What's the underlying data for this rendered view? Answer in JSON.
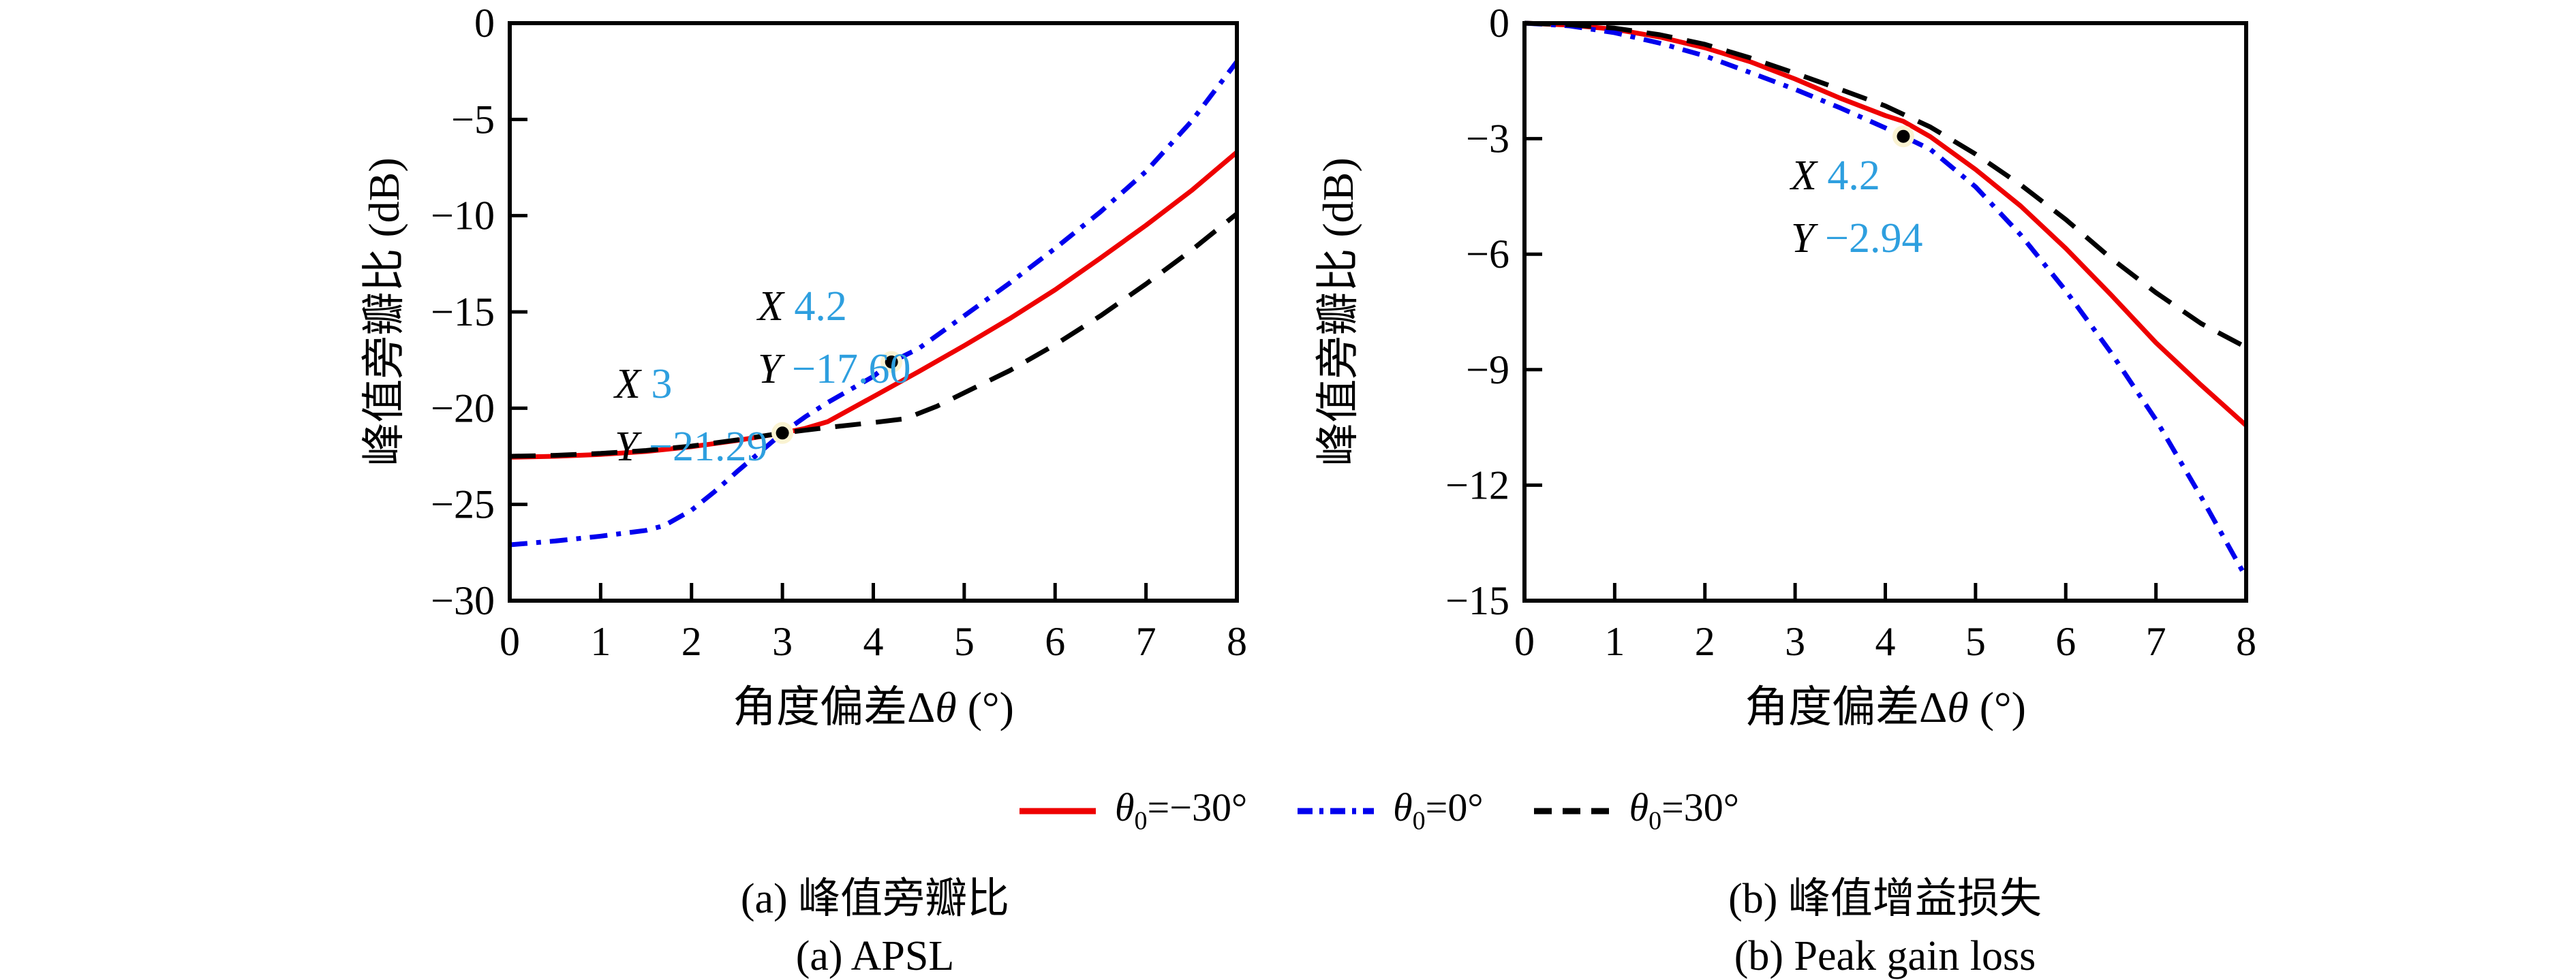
{
  "annotation_color": "#2e9fdf",
  "marker": {
    "dot_color": "#000000",
    "halo_color": "#faf3d2"
  },
  "chart_data": [
    {
      "id": "apsl",
      "type": "line",
      "title": "(a) APSL 峰值旁瓣比",
      "xlabel": "角度偏差Δθ (°)",
      "ylabel": "峰值旁瓣比 (dB)",
      "xlim": [
        0,
        8
      ],
      "ylim": [
        -30,
        0
      ],
      "xticks": [
        0,
        1,
        2,
        3,
        4,
        5,
        6,
        7,
        8
      ],
      "yticks": [
        0,
        -5,
        -10,
        -15,
        -20,
        -25,
        -30
      ],
      "grid": false,
      "legend_position": "below-figure",
      "series": [
        {
          "name": "θ0=−30°",
          "color": "#ee0000",
          "linestyle": "solid",
          "points": [
            [
              0,
              -22.55
            ],
            [
              0.5,
              -22.5
            ],
            [
              1,
              -22.4
            ],
            [
              1.5,
              -22.25
            ],
            [
              2,
              -22.0
            ],
            [
              2.5,
              -21.68
            ],
            [
              3,
              -21.29
            ],
            [
              3.25,
              -21.05
            ],
            [
              3.5,
              -20.7
            ],
            [
              3.75,
              -20.05
            ],
            [
              4,
              -19.4
            ],
            [
              4.5,
              -18.1
            ],
            [
              5,
              -16.75
            ],
            [
              5.5,
              -15.35
            ],
            [
              6,
              -13.85
            ],
            [
              6.5,
              -12.2
            ],
            [
              7,
              -10.5
            ],
            [
              7.5,
              -8.7
            ],
            [
              8,
              -6.7
            ]
          ]
        },
        {
          "name": "θ0=0°",
          "color": "#0000ee",
          "linestyle": "dashdot",
          "points": [
            [
              0,
              -27.1
            ],
            [
              0.5,
              -26.9
            ],
            [
              1,
              -26.65
            ],
            [
              1.5,
              -26.35
            ],
            [
              1.7,
              -26.1
            ],
            [
              2,
              -25.3
            ],
            [
              2.25,
              -24.35
            ],
            [
              2.5,
              -23.3
            ],
            [
              2.75,
              -22.3
            ],
            [
              3,
              -21.29
            ],
            [
              3.25,
              -20.45
            ],
            [
              3.5,
              -19.7
            ],
            [
              4,
              -18.35
            ],
            [
              4.2,
              -17.6
            ],
            [
              4.5,
              -16.9
            ],
            [
              5,
              -15.2
            ],
            [
              5.5,
              -13.5
            ],
            [
              6,
              -11.7
            ],
            [
              6.5,
              -9.8
            ],
            [
              7,
              -7.7
            ],
            [
              7.5,
              -5.1
            ],
            [
              8,
              -2.0
            ]
          ]
        },
        {
          "name": "θ0=30°",
          "color": "#000000",
          "linestyle": "dashed",
          "points": [
            [
              0,
              -22.5
            ],
            [
              0.5,
              -22.45
            ],
            [
              1,
              -22.35
            ],
            [
              1.5,
              -22.2
            ],
            [
              2,
              -21.97
            ],
            [
              2.5,
              -21.65
            ],
            [
              3,
              -21.29
            ],
            [
              3.5,
              -21.0
            ],
            [
              4,
              -20.75
            ],
            [
              4.35,
              -20.55
            ],
            [
              4.7,
              -19.9
            ],
            [
              5,
              -19.2
            ],
            [
              5.5,
              -18.05
            ],
            [
              6,
              -16.7
            ],
            [
              6.5,
              -15.2
            ],
            [
              7,
              -13.55
            ],
            [
              7.5,
              -11.8
            ],
            [
              8,
              -9.9
            ]
          ]
        }
      ],
      "datatips": [
        {
          "x": 3,
          "y": -21.29,
          "x_label": "X",
          "y_label": "Y",
          "x_value": "3",
          "y_value": "−21.29"
        },
        {
          "x": 4.2,
          "y": -17.6,
          "x_label": "X",
          "y_label": "Y",
          "x_value": "4.2",
          "y_value": "−17.60"
        }
      ]
    },
    {
      "id": "peak-gain-loss",
      "type": "line",
      "title": "(b) Peak gain loss 峰值增益损失",
      "xlabel": "角度偏差Δθ (°)",
      "ylabel": "峰值旁瓣比 (dB)",
      "xlim": [
        0,
        8
      ],
      "ylim": [
        -15,
        0
      ],
      "xticks": [
        0,
        1,
        2,
        3,
        4,
        5,
        6,
        7,
        8
      ],
      "yticks": [
        0,
        -3,
        -6,
        -9,
        -12,
        -15
      ],
      "grid": false,
      "legend_position": "below-figure",
      "series": [
        {
          "name": "θ0=−30°",
          "color": "#ee0000",
          "linestyle": "solid",
          "points": [
            [
              0,
              0
            ],
            [
              0.5,
              -0.05
            ],
            [
              1,
              -0.16
            ],
            [
              1.5,
              -0.36
            ],
            [
              2,
              -0.64
            ],
            [
              2.5,
              -1.0
            ],
            [
              3,
              -1.45
            ],
            [
              3.5,
              -1.95
            ],
            [
              4,
              -2.4
            ],
            [
              4.2,
              -2.55
            ],
            [
              4.5,
              -2.95
            ],
            [
              5,
              -3.8
            ],
            [
              5.5,
              -4.75
            ],
            [
              6,
              -5.85
            ],
            [
              6.5,
              -7.05
            ],
            [
              7,
              -8.3
            ],
            [
              7.5,
              -9.4
            ],
            [
              8,
              -10.45
            ]
          ]
        },
        {
          "name": "θ0=0°",
          "color": "#0000ee",
          "linestyle": "dashdot",
          "points": [
            [
              0,
              0
            ],
            [
              0.5,
              -0.07
            ],
            [
              1,
              -0.25
            ],
            [
              1.5,
              -0.52
            ],
            [
              2,
              -0.85
            ],
            [
              2.5,
              -1.28
            ],
            [
              3,
              -1.72
            ],
            [
              3.5,
              -2.2
            ],
            [
              4,
              -2.72
            ],
            [
              4.2,
              -2.94
            ],
            [
              4.5,
              -3.28
            ],
            [
              5,
              -4.25
            ],
            [
              5.5,
              -5.5
            ],
            [
              6,
              -6.95
            ],
            [
              6.5,
              -8.55
            ],
            [
              7,
              -10.3
            ],
            [
              7.5,
              -12.3
            ],
            [
              8,
              -14.4
            ]
          ]
        },
        {
          "name": "θ0=30°",
          "color": "#000000",
          "linestyle": "dashed",
          "points": [
            [
              0,
              0
            ],
            [
              0.5,
              -0.04
            ],
            [
              1,
              -0.13
            ],
            [
              1.5,
              -0.3
            ],
            [
              2,
              -0.55
            ],
            [
              2.5,
              -0.9
            ],
            [
              3,
              -1.3
            ],
            [
              3.5,
              -1.72
            ],
            [
              4,
              -2.15
            ],
            [
              4.5,
              -2.7
            ],
            [
              5,
              -3.4
            ],
            [
              5.5,
              -4.2
            ],
            [
              6,
              -5.1
            ],
            [
              6.5,
              -6.1
            ],
            [
              7,
              -7.0
            ],
            [
              7.5,
              -7.8
            ],
            [
              8,
              -8.42
            ]
          ]
        }
      ],
      "datatips": [
        {
          "x": 4.2,
          "y": -2.94,
          "x_label": "X",
          "y_label": "Y",
          "x_value": "4.2",
          "y_value": "−2.94"
        }
      ]
    }
  ],
  "legend": {
    "items": [
      {
        "theta": "θ",
        "sub": "0",
        "rest": "=−30°",
        "color": "#ee0000",
        "dash": ""
      },
      {
        "theta": "θ",
        "sub": "0",
        "rest": "=0°",
        "color": "#0000ee",
        "dash": "22 10 6 10"
      },
      {
        "theta": "θ",
        "sub": "0",
        "rest": "=30°",
        "color": "#000000",
        "dash": "26 16"
      }
    ]
  },
  "captions": {
    "a_cn": "(a) 峰值旁瓣比",
    "a_en": "(a) APSL",
    "b_cn": "(b) 峰值增益损失",
    "b_en": "(b) Peak gain loss"
  }
}
